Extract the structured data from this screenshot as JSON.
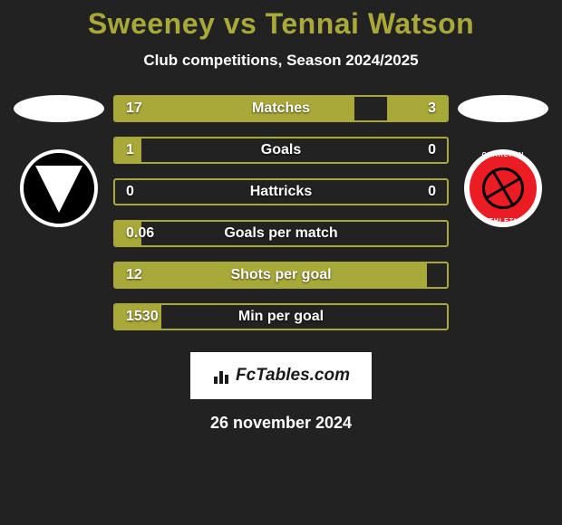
{
  "header": {
    "title": "Sweeney vs Tennai Watson",
    "subtitle": "Club competitions, Season 2024/2025",
    "title_color": "#a9a93a"
  },
  "badge_right": {
    "text_top": "CHARLTON",
    "text_bottom": "ATHLETIC"
  },
  "stats": {
    "bar_color": "#a9a93a",
    "track_bg": "#222222",
    "rows": [
      {
        "label": "Matches",
        "left": "17",
        "right": "3",
        "left_pct": 72,
        "right_pct": 18
      },
      {
        "label": "Goals",
        "left": "1",
        "right": "0",
        "left_pct": 8,
        "right_pct": 0
      },
      {
        "label": "Hattricks",
        "left": "0",
        "right": "0",
        "left_pct": 0,
        "right_pct": 0
      },
      {
        "label": "Goals per match",
        "left": "0.06",
        "right": "",
        "left_pct": 8,
        "right_pct": 0
      },
      {
        "label": "Shots per goal",
        "left": "12",
        "right": "",
        "left_pct": 94,
        "right_pct": 0
      },
      {
        "label": "Min per goal",
        "left": "1530",
        "right": "",
        "left_pct": 14,
        "right_pct": 0
      }
    ]
  },
  "brand": {
    "text": "FcTables.com"
  },
  "date": "26 november 2024",
  "colors": {
    "background": "#222222",
    "accent": "#a9a93a",
    "text": "#ffffff"
  }
}
